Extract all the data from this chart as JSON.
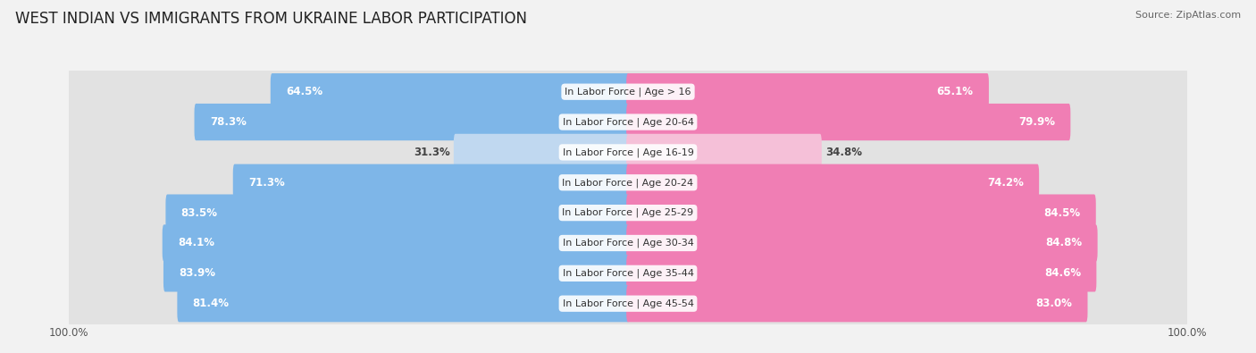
{
  "title": "WEST INDIAN VS IMMIGRANTS FROM UKRAINE LABOR PARTICIPATION",
  "source": "Source: ZipAtlas.com",
  "categories": [
    "In Labor Force | Age > 16",
    "In Labor Force | Age 20-64",
    "In Labor Force | Age 16-19",
    "In Labor Force | Age 20-24",
    "In Labor Force | Age 25-29",
    "In Labor Force | Age 30-34",
    "In Labor Force | Age 35-44",
    "In Labor Force | Age 45-54"
  ],
  "west_indian": [
    64.5,
    78.3,
    31.3,
    71.3,
    83.5,
    84.1,
    83.9,
    81.4
  ],
  "ukraine": [
    65.1,
    79.9,
    34.8,
    74.2,
    84.5,
    84.8,
    84.6,
    83.0
  ],
  "west_indian_color": "#7EB6E8",
  "ukraine_color": "#F07EB4",
  "west_indian_light_color": "#C0D8F0",
  "ukraine_light_color": "#F5C0D8",
  "background_color": "#F2F2F2",
  "row_bg_color": "#E2E2E2",
  "max_value": 100.0,
  "bar_height": 0.62,
  "title_fontsize": 12,
  "label_fontsize": 8.5,
  "cat_fontsize": 8.0,
  "tick_fontsize": 8.5,
  "legend_fontsize": 9
}
